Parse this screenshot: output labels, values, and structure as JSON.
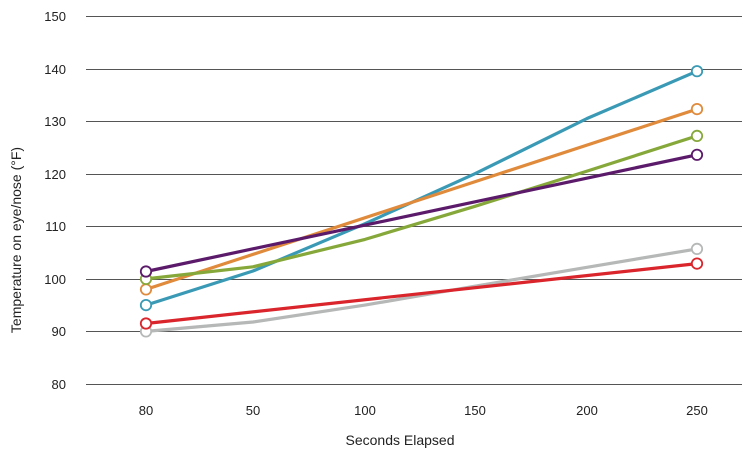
{
  "chart_data": {
    "type": "line",
    "xlabel": "Seconds Elapsed",
    "ylabel": "Temperature on eye/nose (°F)",
    "categories": [
      "80",
      "50",
      "100",
      "150",
      "200",
      "250"
    ],
    "ylim": [
      80,
      150
    ],
    "yticks": [
      80,
      90,
      100,
      110,
      120,
      130,
      140,
      150
    ],
    "grid": "horizontal",
    "legend": "none",
    "series": [
      {
        "color": "#3a9ab5",
        "x": [
          80,
          50,
          100,
          150,
          200,
          250
        ],
        "values": [
          95.0,
          101.5,
          110.5,
          120.0,
          130.5,
          139.5
        ],
        "marker_points": [
          0,
          5
        ]
      },
      {
        "color": "#e08a3c",
        "x": [
          80,
          250
        ],
        "values": [
          98.0,
          132.3
        ],
        "marker_points": [
          0,
          1
        ]
      },
      {
        "color": "#86a83a",
        "x": [
          80,
          50,
          100,
          150,
          200,
          250
        ],
        "values": [
          100.0,
          102.3,
          107.5,
          113.8,
          120.5,
          127.2
        ],
        "marker_points": [
          0,
          5
        ]
      },
      {
        "color": "#5c1a6b",
        "x": [
          80,
          250
        ],
        "values": [
          101.4,
          123.6
        ],
        "marker_points": [
          0,
          1
        ]
      },
      {
        "color": "#b5b8b7",
        "x": [
          80,
          50,
          100,
          150,
          200,
          250
        ],
        "values": [
          90.0,
          91.8,
          95.0,
          98.6,
          102.2,
          105.7
        ],
        "marker_points": [
          0,
          5
        ]
      },
      {
        "color": "#d9252b",
        "x": [
          80,
          250
        ],
        "values": [
          91.5,
          102.9
        ],
        "marker_points": [
          0,
          1
        ]
      }
    ]
  }
}
